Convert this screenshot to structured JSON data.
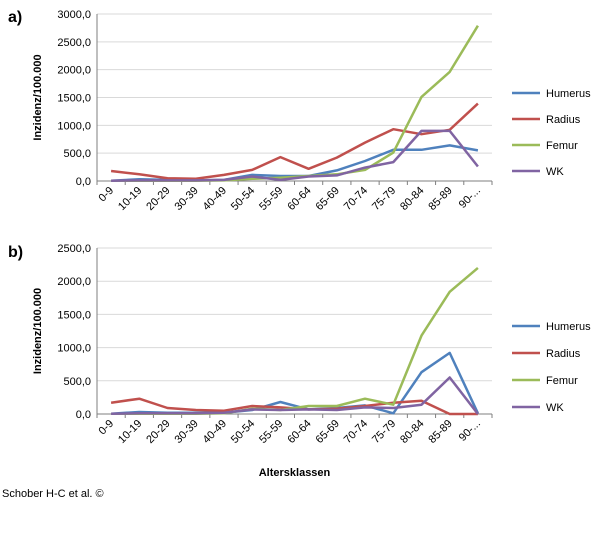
{
  "credit": "Schober H-C et al. ©",
  "chart_data": [
    {
      "type": "line",
      "panel_label": "a)",
      "ylabel": "Inzidenz/100.000",
      "xlabel": "",
      "ylim": [
        0,
        3000
      ],
      "yticks": [
        "0,0",
        "500,0",
        "1000,0",
        "1500,0",
        "2000,0",
        "2500,0",
        "3000,0"
      ],
      "categories": [
        "0-9",
        "10-19",
        "20-29",
        "30-39",
        "40-49",
        "50-54",
        "55-59",
        "60-64",
        "65-69",
        "70-74",
        "75-79",
        "80-84",
        "85-89",
        "90-..."
      ],
      "legend_position": "right",
      "series": [
        {
          "name": "Humerus",
          "color": "#4f81bd",
          "values": [
            5,
            30,
            20,
            10,
            20,
            110,
            90,
            90,
            190,
            360,
            560,
            560,
            640,
            550
          ]
        },
        {
          "name": "Radius",
          "color": "#c0504d",
          "values": [
            180,
            120,
            50,
            40,
            110,
            200,
            430,
            220,
            420,
            690,
            930,
            840,
            920,
            1390
          ]
        },
        {
          "name": "Femur",
          "color": "#9bbb59",
          "values": [
            5,
            5,
            5,
            5,
            10,
            40,
            60,
            90,
            120,
            200,
            510,
            1510,
            1960,
            2790
          ]
        },
        {
          "name": "WK",
          "color": "#8064a2",
          "values": [
            5,
            10,
            10,
            10,
            20,
            80,
            20,
            80,
            100,
            240,
            340,
            900,
            900,
            260
          ]
        }
      ]
    },
    {
      "type": "line",
      "panel_label": "b)",
      "ylabel": "Inzidenz/100.000",
      "xlabel": "Altersklassen",
      "ylim": [
        0,
        2500
      ],
      "yticks": [
        "0,0",
        "500,0",
        "1000,0",
        "1500,0",
        "2000,0",
        "2500,0"
      ],
      "categories": [
        "0-9",
        "10-19",
        "20-29",
        "30-39",
        "40-49",
        "50-54",
        "55-59",
        "60-64",
        "65-69",
        "70-74",
        "75-79",
        "80-84",
        "85-89",
        "90-..."
      ],
      "legend_position": "right",
      "series": [
        {
          "name": "Humerus",
          "color": "#4f81bd",
          "values": [
            5,
            30,
            20,
            20,
            20,
            60,
            180,
            70,
            90,
            130,
            10,
            630,
            920,
            10
          ]
        },
        {
          "name": "Radius",
          "color": "#c0504d",
          "values": [
            170,
            230,
            90,
            60,
            50,
            120,
            100,
            70,
            80,
            120,
            170,
            200,
            0,
            0
          ]
        },
        {
          "name": "Femur",
          "color": "#9bbb59",
          "values": [
            5,
            5,
            5,
            5,
            10,
            80,
            60,
            120,
            120,
            230,
            140,
            1180,
            1840,
            2200
          ]
        },
        {
          "name": "WK",
          "color": "#8064a2",
          "values": [
            5,
            10,
            10,
            10,
            20,
            70,
            60,
            70,
            60,
            100,
            90,
            140,
            550,
            0
          ]
        }
      ]
    }
  ]
}
